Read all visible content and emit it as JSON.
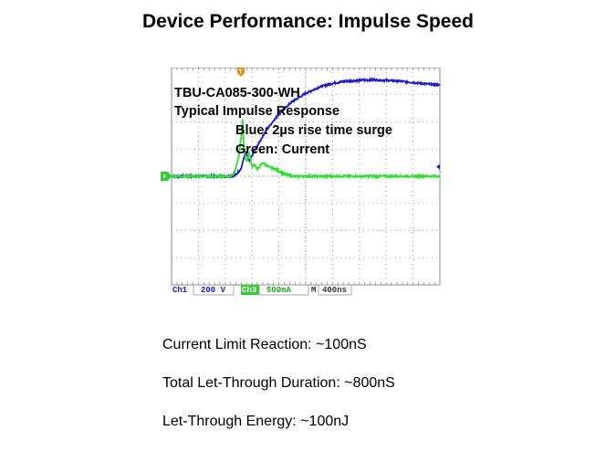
{
  "slide": {
    "title": "Device Performance: Impulse Speed",
    "bullets": [
      "Current Limit Reaction: ~100nS",
      "Total Let-Through Duration: ~800nS",
      "Let-Through Energy: ~100nJ"
    ]
  },
  "chart_data": {
    "type": "line",
    "title": "",
    "annotations": [
      "TBU-CA085-300-WH",
      "Typical  Impulse  Response",
      "Blue:  2µs rise time surge",
      "Green:  Current"
    ],
    "x_divisions": 10,
    "y_divisions": 8,
    "x_unit_per_div_ns": 400,
    "xlim": [
      0,
      10
    ],
    "ylim": [
      -4,
      4
    ],
    "readout": {
      "ch1_label": "Ch1",
      "ch1_scale": "200 V",
      "ch3_label": "Ch3",
      "ch3_scale": "500mA",
      "time_label": "M",
      "time_scale": "400ns"
    },
    "trigger_marker": "T",
    "series": [
      {
        "name": "Blue",
        "color": "#1c1cc8",
        "x": [
          0,
          2.2,
          2.4,
          2.6,
          2.75,
          2.9,
          3.1,
          3.3,
          3.5,
          3.8,
          4.1,
          4.5,
          5.0,
          5.5,
          6.0,
          6.5,
          7.0,
          7.5,
          8.0,
          8.5,
          9.0,
          9.5,
          10.0
        ],
        "y": [
          0,
          0,
          0.05,
          0.3,
          0.9,
          0.55,
          0.95,
          1.3,
          1.65,
          2.05,
          2.4,
          2.75,
          3.05,
          3.28,
          3.42,
          3.5,
          3.53,
          3.55,
          3.53,
          3.5,
          3.45,
          3.4,
          3.35
        ]
      },
      {
        "name": "Green",
        "color": "#33dd33",
        "x": [
          0,
          2.2,
          2.35,
          2.5,
          2.6,
          2.65,
          2.7,
          2.8,
          2.9,
          3.0,
          3.1,
          3.2,
          3.4,
          3.6,
          3.9,
          4.2,
          4.5,
          5.0,
          6.0,
          7.0,
          8.0,
          9.0,
          10.0
        ],
        "y": [
          0,
          0,
          0.15,
          0.7,
          1.5,
          2.1,
          0.9,
          0.55,
          0.85,
          0.35,
          0.45,
          0.25,
          0.5,
          0.35,
          0.25,
          0.08,
          0,
          0,
          0,
          0,
          0,
          0,
          0
        ]
      }
    ],
    "colors": {
      "grid": "#8a8a8a",
      "frame": "#555555",
      "ch1_text": "#1c1cc8",
      "ch3_text": "#22aa22",
      "ch3_box": "#33cc33",
      "trigger": "#e08a1a"
    }
  }
}
